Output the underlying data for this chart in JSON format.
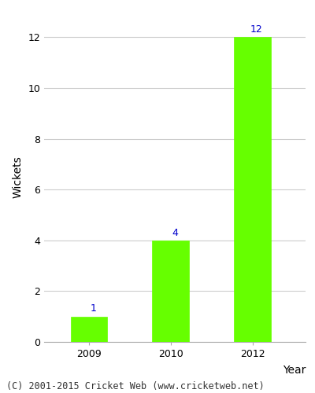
{
  "years": [
    "2009",
    "2010",
    "2012"
  ],
  "wickets": [
    1,
    4,
    12
  ],
  "bar_color": "#66ff00",
  "bar_edge_color": "#66ff00",
  "label_color": "#0000cc",
  "label_fontsize": 9,
  "ylabel": "Wickets",
  "xlabel": "Year",
  "ylim": [
    0,
    13
  ],
  "yticks": [
    0,
    2,
    4,
    6,
    8,
    10,
    12
  ],
  "grid_color": "#cccccc",
  "background_color": "#ffffff",
  "footer_text": "(C) 2001-2015 Cricket Web (www.cricketweb.net)",
  "footer_fontsize": 8.5,
  "axis_label_fontsize": 10,
  "tick_fontsize": 9,
  "bar_width": 0.45
}
